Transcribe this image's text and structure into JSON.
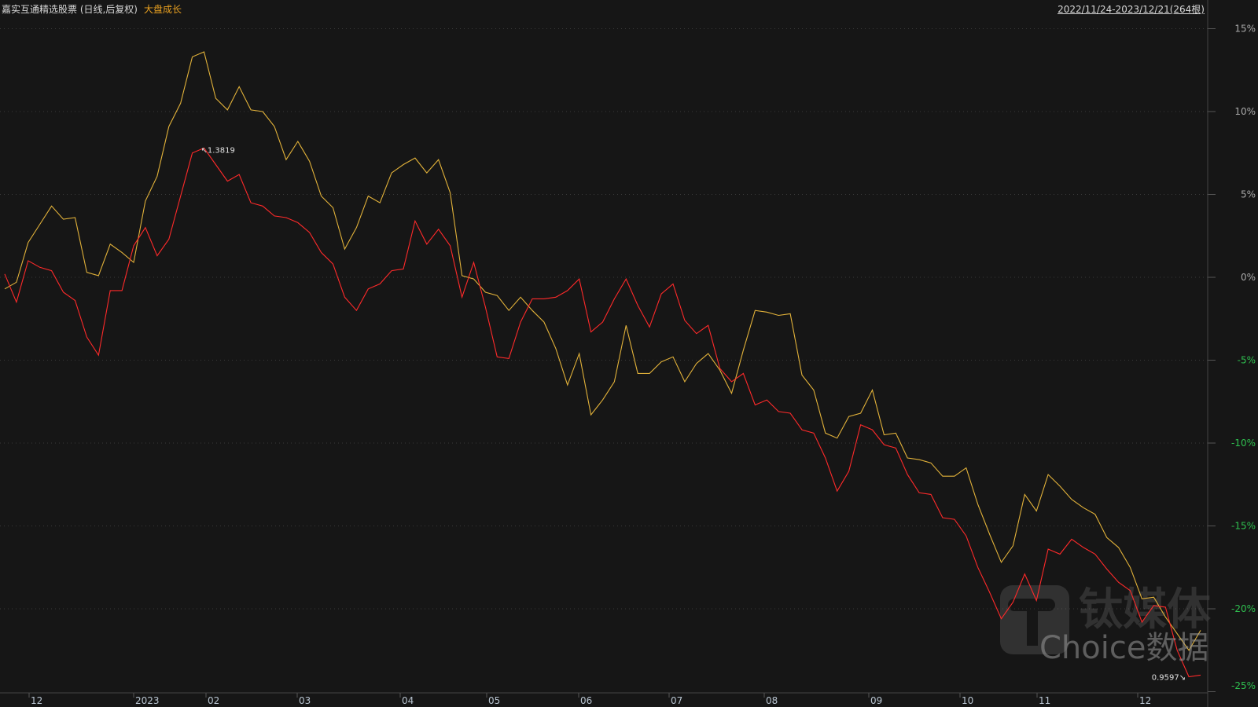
{
  "header": {
    "title": "嘉实互通精选股票 (日线,后复权)",
    "subtitle": "大盘成长",
    "date_range": "2022/11/24-2023/12/21(264根)"
  },
  "watermark": {
    "brand": "钛媒体",
    "source": "Choice数据"
  },
  "colors": {
    "background": "#161616",
    "fund_line": "#ff2a2a",
    "benchmark_line": "#e2b23a",
    "positive_label": "#a8a8a8",
    "negative_label": "#2fbf4f",
    "subtitle": "#e8a020"
  },
  "chart_data": {
    "type": "line",
    "x_range": [
      "2022/11/24",
      "2023/12/21"
    ],
    "bars": 264,
    "ylim": [
      -25,
      15
    ],
    "y_unit": "%",
    "grid": true,
    "yticks": [
      15,
      10,
      5,
      0,
      -5,
      -10,
      -15,
      -20,
      -25
    ],
    "ytick_labels": [
      "15%",
      "10%",
      "5%",
      "0%",
      "-5%",
      "-10%",
      "-15%",
      "-20%",
      "-25%"
    ],
    "xtick_labels": [
      "12",
      "2023",
      "02",
      "03",
      "04",
      "05",
      "06",
      "07",
      "08",
      "09",
      "10",
      "11",
      "12"
    ],
    "annotations": {
      "max_label": "↖1.3819",
      "min_label": "0.9597↘"
    },
    "series": [
      {
        "key": "fund",
        "values": [
          0.2,
          -1.5,
          1.0,
          0.6,
          0.4,
          -0.9,
          -1.4,
          -3.6,
          -4.7,
          -0.8,
          -0.8,
          1.9,
          3.0,
          1.3,
          2.3,
          4.9,
          7.5,
          7.8,
          6.8,
          5.8,
          6.2,
          4.5,
          4.3,
          3.7,
          3.6,
          3.3,
          2.7,
          1.5,
          0.8,
          -1.2,
          -2.0,
          -0.7,
          -0.4,
          0.4,
          0.5,
          3.4,
          2.0,
          2.9,
          1.9,
          -1.2,
          0.9,
          -1.8,
          -4.8,
          -4.9,
          -2.7,
          -1.3,
          -1.3,
          -1.2,
          -0.8,
          -0.1,
          -3.3,
          -2.7,
          -1.3,
          -0.1,
          -1.7,
          -3.0,
          -1.0,
          -0.4,
          -2.6,
          -3.4,
          -2.9,
          -5.5,
          -6.3,
          -5.8,
          -7.7,
          -7.4,
          -8.1,
          -8.2,
          -9.2,
          -9.4,
          -10.9,
          -12.9,
          -11.7,
          -8.9,
          -9.2,
          -10.1,
          -10.3,
          -11.9,
          -13.0,
          -13.1,
          -14.5,
          -14.6,
          -15.6,
          -17.5,
          -19.0,
          -20.6,
          -19.6,
          -17.9,
          -19.5,
          -16.4,
          -16.7,
          -15.8,
          -16.3,
          -16.7,
          -17.6,
          -18.4,
          -18.9,
          -20.8,
          -19.8,
          -19.9,
          -22.5,
          -24.1,
          -24.0
        ]
      },
      {
        "key": "benchmark",
        "name": "大盘成长",
        "values": [
          -0.7,
          -0.3,
          2.1,
          3.2,
          4.3,
          3.5,
          3.6,
          0.3,
          0.1,
          2.0,
          1.5,
          0.9,
          4.6,
          6.1,
          9.1,
          10.5,
          13.3,
          13.6,
          10.8,
          10.1,
          11.5,
          10.1,
          10.0,
          9.1,
          7.1,
          8.2,
          7.0,
          4.9,
          4.2,
          1.7,
          3.0,
          4.9,
          4.5,
          6.3,
          6.8,
          7.2,
          6.3,
          7.1,
          5.1,
          0.1,
          -0.1,
          -0.9,
          -1.1,
          -2.0,
          -1.2,
          -2.0,
          -2.7,
          -4.3,
          -6.5,
          -4.6,
          -8.3,
          -7.4,
          -6.3,
          -2.9,
          -5.8,
          -5.8,
          -5.1,
          -4.8,
          -6.3,
          -5.2,
          -4.6,
          -5.6,
          -7.0,
          -4.4,
          -2.0,
          -2.1,
          -2.3,
          -2.2,
          -5.9,
          -6.8,
          -9.4,
          -9.7,
          -8.4,
          -8.2,
          -6.8,
          -9.5,
          -9.4,
          -10.9,
          -11.0,
          -11.2,
          -12.0,
          -12.0,
          -11.5,
          -13.7,
          -15.5,
          -17.2,
          -16.2,
          -13.1,
          -14.1,
          -11.9,
          -12.6,
          -13.4,
          -13.9,
          -14.3,
          -15.7,
          -16.3,
          -17.5,
          -19.4,
          -19.3,
          -20.5,
          -21.5,
          -22.5,
          -21.3
        ]
      }
    ]
  }
}
